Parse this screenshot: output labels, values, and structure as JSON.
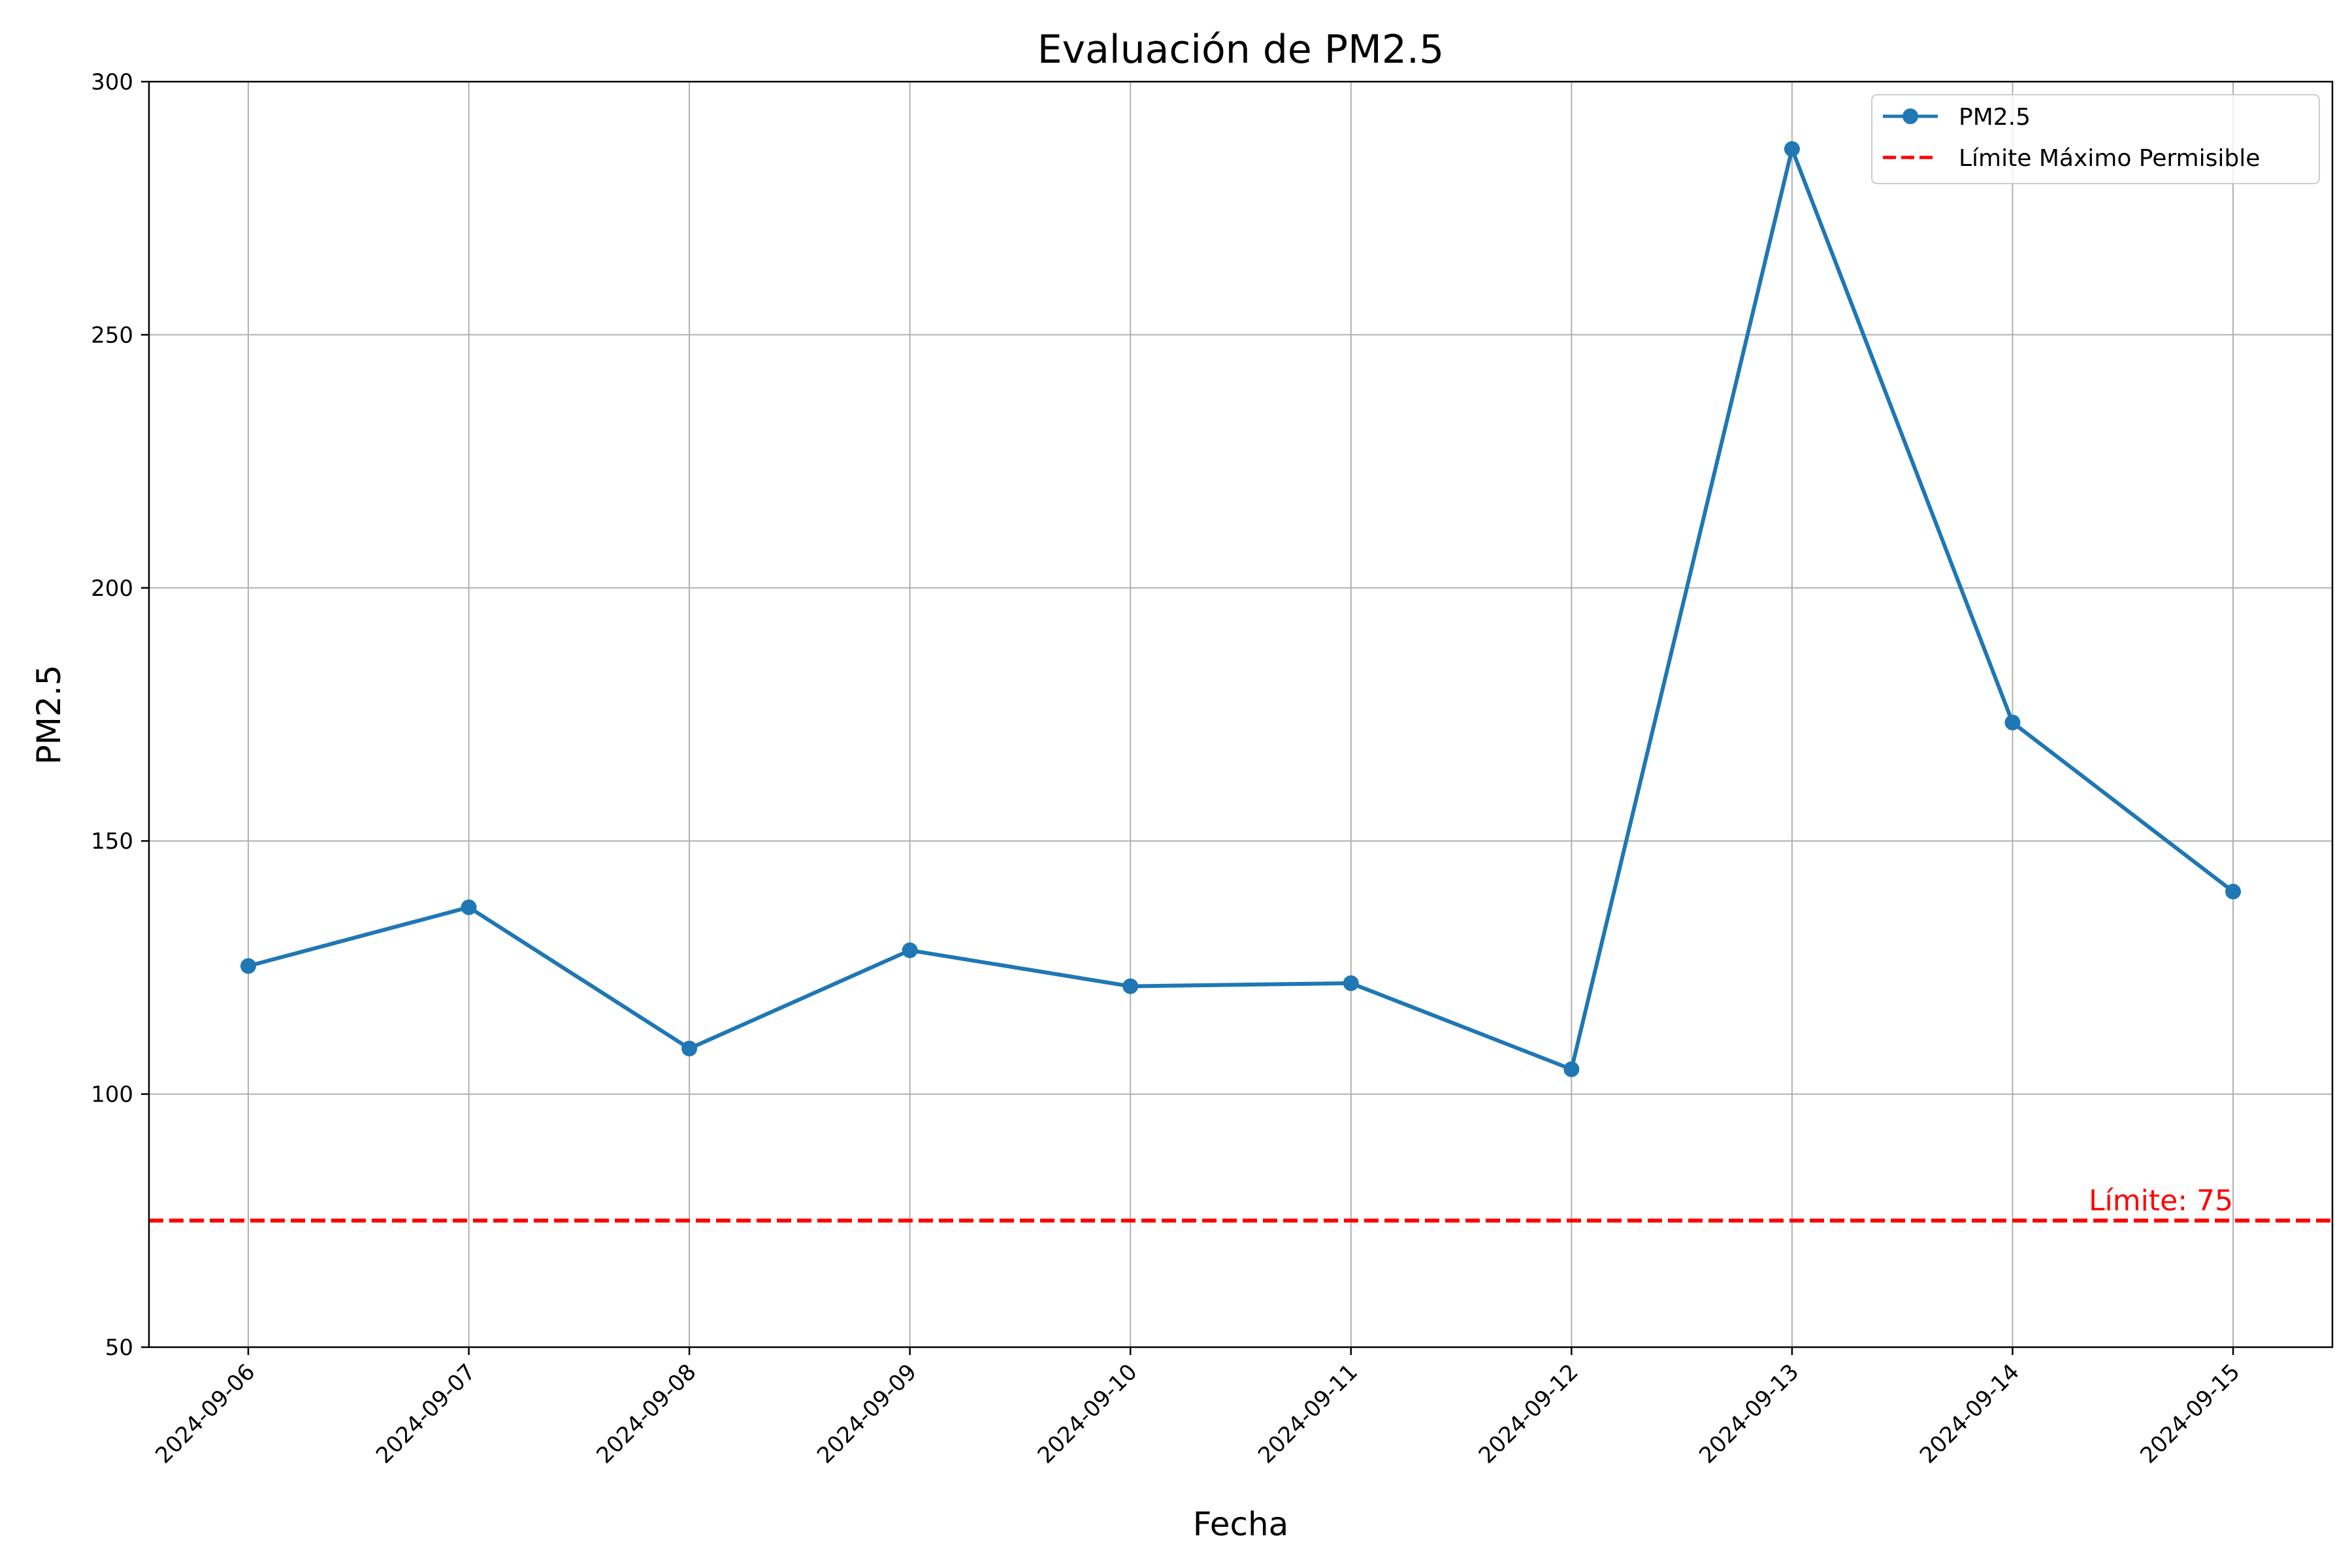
{
  "chart_data": {
    "type": "line",
    "title": "Evaluación de PM2.5",
    "xlabel": "Fecha",
    "ylabel": "PM2.5",
    "categories": [
      "2024-09-06",
      "2024-09-07",
      "2024-09-08",
      "2024-09-09",
      "2024-09-10",
      "2024-09-11",
      "2024-09-12",
      "2024-09-13",
      "2024-09-14",
      "2024-09-15"
    ],
    "series": [
      {
        "name": "PM2.5",
        "values": [
          125.3,
          136.9,
          109.0,
          128.4,
          121.3,
          121.9,
          104.9,
          286.7,
          173.4,
          140.0
        ],
        "color": "#1f77b4",
        "marker": "circle"
      }
    ],
    "reference_line": {
      "name": "Límite Máximo Permisible",
      "value": 75,
      "color": "#ff0000",
      "style": "dashed",
      "annotation": "Límite: 75"
    },
    "ylim": [
      50,
      300
    ],
    "yticks": [
      50,
      100,
      150,
      200,
      250,
      300
    ],
    "grid": true,
    "legend": "top-right"
  }
}
